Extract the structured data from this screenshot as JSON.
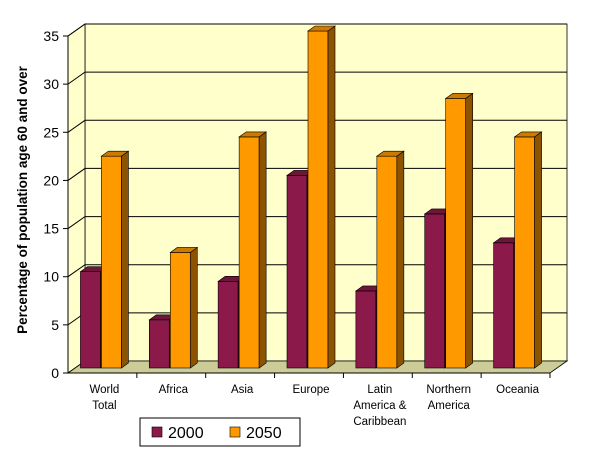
{
  "chart_data": {
    "type": "bar",
    "categories": [
      [
        "World",
        "Total"
      ],
      [
        "Africa"
      ],
      [
        "Asia"
      ],
      [
        "Europe"
      ],
      [
        "Latin",
        "America &",
        "Caribbean"
      ],
      [
        "Northern",
        "America"
      ],
      [
        "Oceania"
      ]
    ],
    "series": [
      {
        "name": "2000",
        "values": [
          10,
          5,
          9,
          20,
          8,
          16,
          13
        ],
        "color": "#8B1A4A"
      },
      {
        "name": "2050",
        "values": [
          22,
          12,
          24,
          35,
          22,
          28,
          24
        ],
        "color": "#FF9900"
      }
    ],
    "ylabel": "Percentage of population age 60 and over",
    "xlabel": "",
    "title": "",
    "ylim": [
      0,
      35
    ],
    "yticks": [
      0,
      5,
      10,
      15,
      20,
      25,
      30,
      35
    ],
    "grid": true,
    "legend": "bottom",
    "colors": {
      "plot_background": "#FFFFCC",
      "floor": "#CCCC99",
      "gridline": "#000000"
    }
  }
}
